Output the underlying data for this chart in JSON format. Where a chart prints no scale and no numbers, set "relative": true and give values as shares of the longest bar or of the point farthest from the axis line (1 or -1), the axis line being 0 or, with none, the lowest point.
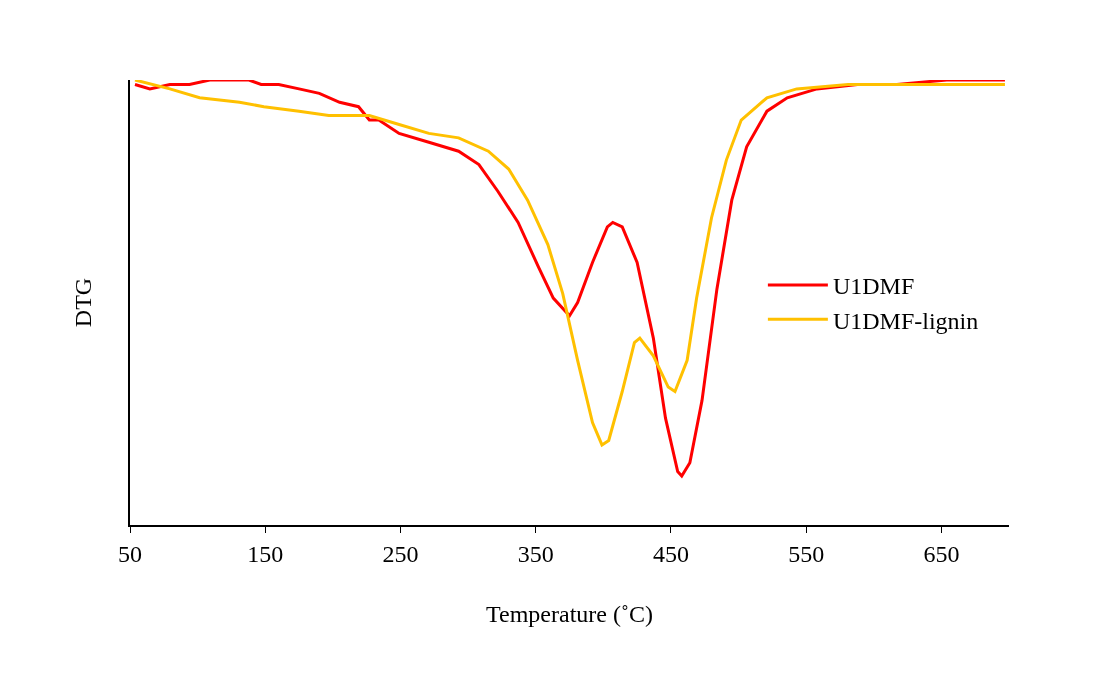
{
  "chart_data": {
    "type": "line",
    "relative": true,
    "xlabel": "Temperature (˚C)",
    "ylabel": "DTG",
    "xlim": [
      50,
      700
    ],
    "xticks": [
      50,
      150,
      250,
      350,
      450,
      550,
      650
    ],
    "grid": false,
    "legend": "right",
    "marker": "none",
    "line_style": "solid",
    "series": [
      {
        "name": "U1DMF",
        "color": "#ff0000",
        "x": [
          53.7,
          64.7,
          79.5,
          94,
          109,
          138,
          147,
          160,
          175,
          190,
          205,
          219,
          227,
          234,
          249,
          271,
          293,
          308,
          322,
          337,
          352,
          363,
          375,
          381,
          392,
          403,
          407,
          414,
          425,
          437,
          446,
          455,
          458,
          464,
          473,
          484,
          495,
          506,
          521,
          536,
          558,
          588,
          617,
          654,
          697
        ],
        "values": [
          0.99,
          0.98,
          0.99,
          0.99,
          1.0,
          1.0,
          0.99,
          0.99,
          0.98,
          0.97,
          0.95,
          0.94,
          0.91,
          0.91,
          0.88,
          0.86,
          0.84,
          0.81,
          0.75,
          0.68,
          0.58,
          0.51,
          0.47,
          0.5,
          0.59,
          0.67,
          0.68,
          0.67,
          0.59,
          0.42,
          0.24,
          0.12,
          0.11,
          0.14,
          0.28,
          0.53,
          0.73,
          0.85,
          0.93,
          0.96,
          0.98,
          0.99,
          0.99,
          1.0,
          1.0
        ]
      },
      {
        "name": "U1DMF-lignin",
        "color": "#ffc000",
        "x": [
          53.7,
          79.5,
          101.5,
          131,
          149,
          175,
          197,
          227,
          249,
          271,
          293,
          315,
          330,
          344,
          359,
          370,
          381,
          392,
          399,
          404,
          414,
          423,
          427,
          437,
          448,
          453,
          462,
          469,
          480,
          491,
          502,
          521,
          543,
          581,
          654,
          697
        ],
        "values": [
          1.0,
          0.98,
          0.96,
          0.95,
          0.94,
          0.93,
          0.92,
          0.92,
          0.9,
          0.88,
          0.87,
          0.84,
          0.8,
          0.73,
          0.63,
          0.52,
          0.37,
          0.23,
          0.18,
          0.19,
          0.3,
          0.41,
          0.42,
          0.38,
          0.31,
          0.3,
          0.37,
          0.51,
          0.69,
          0.82,
          0.91,
          0.96,
          0.98,
          0.99,
          0.99,
          0.99
        ]
      }
    ]
  }
}
